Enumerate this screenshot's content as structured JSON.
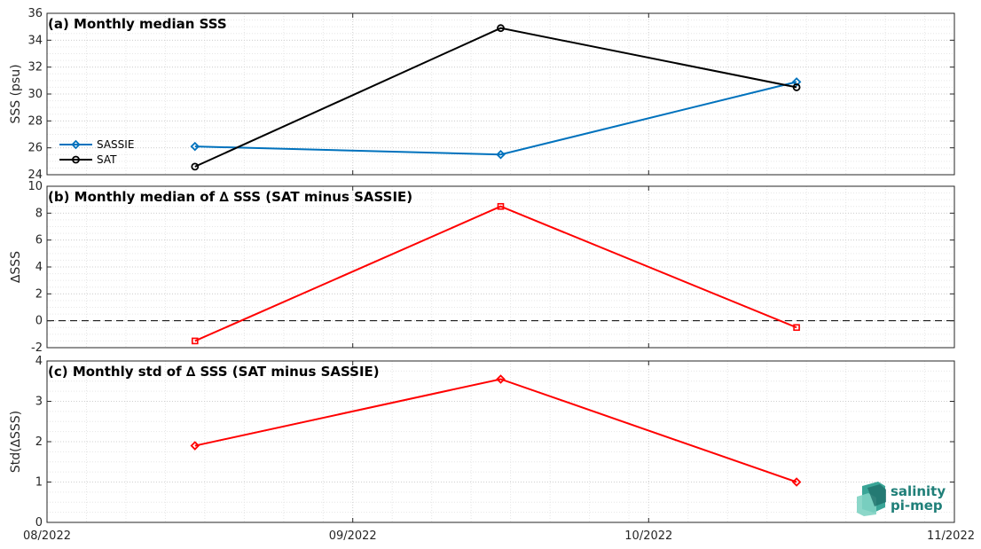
{
  "x_ticks": [
    "08/2022",
    "09/2022",
    "10/2022",
    "11/2022"
  ],
  "logo": {
    "line1": "salinity",
    "line2": "pi-mep"
  },
  "colors": {
    "sassie": "#0072bd",
    "sat": "#000000",
    "delta": "#ff0000",
    "zero_line": "#000000"
  },
  "chart_data": [
    {
      "type": "line",
      "title": "(a) Monthly median SSS",
      "ylabel": "SSS (psu)",
      "ylim": [
        24,
        36
      ],
      "yticks": [
        24,
        26,
        28,
        30,
        32,
        34,
        36
      ],
      "x": [
        "2022-08-16",
        "2022-09-16",
        "2022-10-16"
      ],
      "grid": true,
      "legend_position": "left",
      "series": [
        {
          "name": "SASSIE",
          "marker": "diamond",
          "values": [
            26.1,
            25.5,
            30.9
          ]
        },
        {
          "name": "SAT",
          "marker": "circle",
          "values": [
            24.6,
            34.9,
            30.5
          ]
        }
      ]
    },
    {
      "type": "line",
      "title": "(b) Monthly median of ∆ SSS (SAT minus SASSIE)",
      "ylabel": "∆SSS",
      "ylim": [
        -2,
        10
      ],
      "yticks": [
        -2,
        0,
        2,
        4,
        6,
        8,
        10
      ],
      "x": [
        "2022-08-16",
        "2022-09-16",
        "2022-10-16"
      ],
      "grid": true,
      "zero_line": true,
      "series": [
        {
          "marker": "square",
          "values": [
            -1.5,
            8.5,
            -0.5
          ]
        }
      ]
    },
    {
      "type": "line",
      "title": "(c) Monthly std of ∆ SSS (SAT minus SASSIE)",
      "ylabel": "Std(∆SSS)",
      "ylim": [
        0,
        4
      ],
      "yticks": [
        0,
        1,
        2,
        3,
        4
      ],
      "x": [
        "2022-08-16",
        "2022-09-16",
        "2022-10-16"
      ],
      "grid": true,
      "series": [
        {
          "marker": "diamond",
          "values": [
            1.9,
            3.55,
            1.0
          ]
        }
      ]
    }
  ]
}
